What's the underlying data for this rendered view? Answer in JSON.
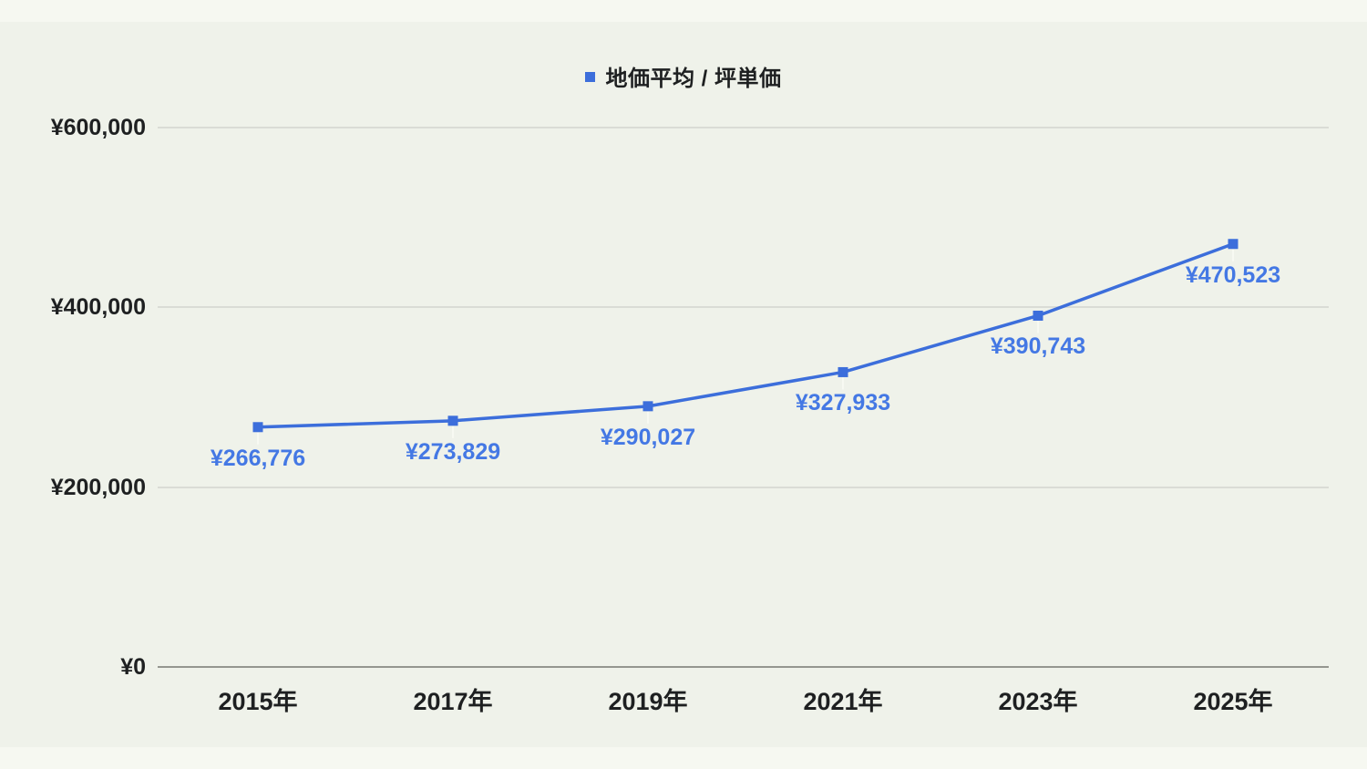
{
  "page": {
    "background": "#f6f8f1",
    "panel_background": "#eff2ea",
    "text_color": "#1e2021"
  },
  "legend": {
    "label": "地価平均 / 坪単価",
    "marker_color": "#3c6edb"
  },
  "chart_data": {
    "type": "line",
    "title": "地価平均 / 坪単価",
    "categories": [
      "2015年",
      "2017年",
      "2019年",
      "2021年",
      "2023年",
      "2025年"
    ],
    "series": [
      {
        "name": "地価平均 / 坪単価",
        "values": [
          266776,
          273829,
          290027,
          327933,
          390743,
          470523
        ]
      }
    ],
    "point_labels": [
      "¥266,776",
      "¥273,829",
      "¥290,027",
      "¥327,933",
      "¥390,743",
      "¥470,523"
    ],
    "yticks": [
      {
        "value": 0,
        "label": "¥0"
      },
      {
        "value": 200000,
        "label": "¥200,000"
      },
      {
        "value": 400000,
        "label": "¥400,000"
      },
      {
        "value": 600000,
        "label": "¥600,000"
      }
    ],
    "ylim": [
      0,
      600000
    ],
    "xlabel": "",
    "ylabel": "",
    "grid": true,
    "legend_position": "top-center",
    "marker": "square",
    "line_color": "#3c6edb",
    "value_label_color": "#4478e4",
    "gridline_color": "#dadcd6",
    "baseline_color": "#94968f",
    "leader_line_color": "#f7f9f2"
  }
}
